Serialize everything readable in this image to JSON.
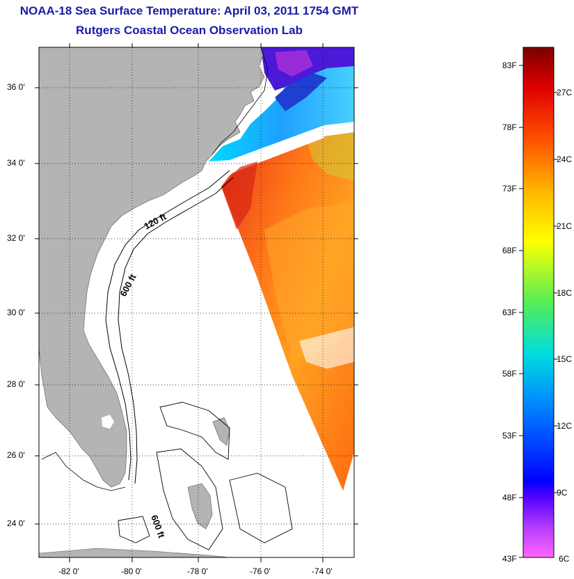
{
  "header": {
    "title": "NOAA-18 Sea Surface Temperature:  April 03, 2011 1754 GMT",
    "subtitle": "Rutgers Coastal Ocean Observation Lab"
  },
  "map": {
    "lat_labels": [
      "36 0'",
      "34 0'",
      "32 0'",
      "30 0'",
      "28 0'",
      "26 0'",
      "24 0'"
    ],
    "lon_labels": [
      "-82 0'",
      "-80 0'",
      "-78 0'",
      "-76 0'",
      "-74 0'"
    ],
    "lat_range": [
      23,
      37
    ],
    "lon_range": [
      -83,
      -73
    ],
    "contour_labels": [
      "120 ft",
      "600 ft",
      "600 ft"
    ],
    "land_color": "#b4b4b4",
    "grid": "dotted"
  },
  "colorbar": {
    "f_labels": [
      "83F",
      "78F",
      "73F",
      "68F",
      "63F",
      "58F",
      "53F",
      "48F",
      "43F"
    ],
    "c_labels": [
      "27C",
      "24C",
      "21C",
      "18C",
      "15C",
      "12C",
      "9C",
      "6C"
    ],
    "range_f": [
      43,
      85
    ]
  }
}
